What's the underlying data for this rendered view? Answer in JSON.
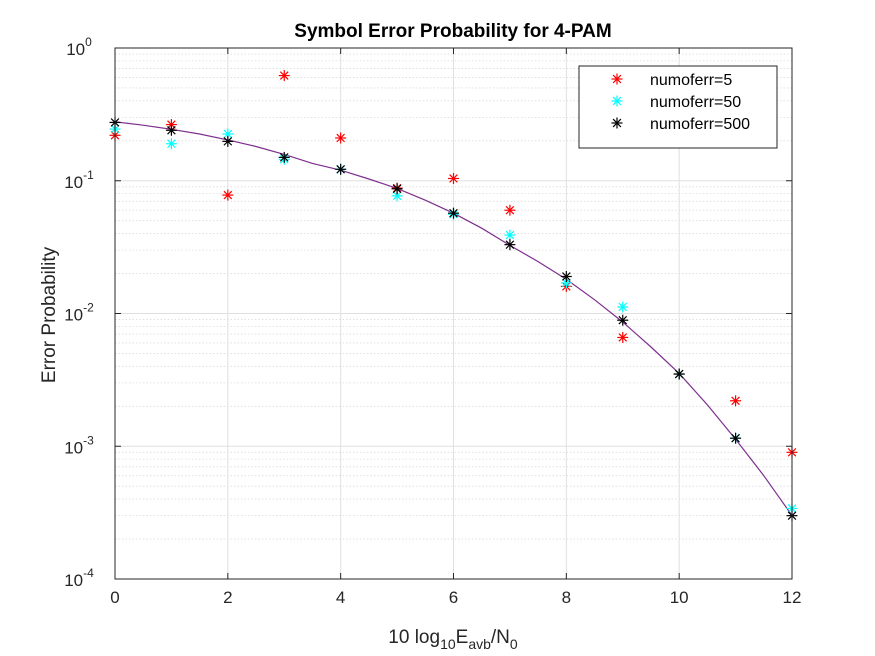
{
  "chart_data": {
    "type": "scatter",
    "title": "Symbol Error Probability for 4-PAM",
    "xlabel": {
      "prefix": "10 log",
      "sub1": "10",
      "mid": "E",
      "sub2": "avb",
      "slash": "/N",
      "sub3": "0"
    },
    "ylabel": "Error Probability",
    "xlim": [
      0,
      12
    ],
    "ylim": [
      0.0001,
      1
    ],
    "yscale": "log",
    "xticks": [
      0,
      2,
      4,
      6,
      8,
      10,
      12
    ],
    "xtick_labels": [
      "0",
      "2",
      "4",
      "6",
      "8",
      "10",
      "12"
    ],
    "yticks": [
      0.0001,
      0.001,
      0.01,
      0.1,
      1
    ],
    "ytick_labels": [
      {
        "base": "10",
        "exp": "-4"
      },
      {
        "base": "10",
        "exp": "-3"
      },
      {
        "base": "10",
        "exp": "-2"
      },
      {
        "base": "10",
        "exp": "-1"
      },
      {
        "base": "10",
        "exp": "0"
      }
    ],
    "grid": true,
    "minor_grid": true,
    "legend_position": "top-right",
    "theory_curve": {
      "color": "#7e2f8e",
      "x": [
        0,
        0.5,
        1,
        1.5,
        2,
        2.5,
        3,
        3.5,
        4,
        4.5,
        5,
        5.5,
        6,
        6.5,
        7,
        7.5,
        8,
        8.5,
        9,
        9.5,
        10,
        10.5,
        11,
        11.5,
        12
      ],
      "y": [
        0.278,
        0.262,
        0.244,
        0.225,
        0.203,
        0.181,
        0.158,
        0.135,
        0.12,
        0.103,
        0.0875,
        0.0714,
        0.057,
        0.0439,
        0.0326,
        0.0246,
        0.0181,
        0.0127,
        0.00861,
        0.00559,
        0.00354,
        0.00205,
        0.00113,
        0.0006,
        0.000301
      ]
    },
    "series": [
      {
        "name": "numoferr=5",
        "color": "#ff0000",
        "x": [
          0,
          1,
          2,
          3,
          4,
          5,
          6,
          7,
          8,
          9,
          10,
          11,
          12
        ],
        "y": [
          0.22,
          0.265,
          0.078,
          0.62,
          0.21,
          0.088,
          0.104,
          0.06,
          0.016,
          0.0066,
          0.0035,
          0.0022,
          0.0009
        ]
      },
      {
        "name": "numoferr=50",
        "color": "#00ffff",
        "x": [
          0,
          1,
          2,
          3,
          4,
          5,
          6,
          7,
          8,
          9,
          10,
          11,
          12
        ],
        "y": [
          0.245,
          0.19,
          0.225,
          0.145,
          0.122,
          0.077,
          0.056,
          0.039,
          0.017,
          0.0112,
          0.0035,
          0.00115,
          0.00034
        ]
      },
      {
        "name": "numoferr=500",
        "color": "#000000",
        "x": [
          0,
          1,
          2,
          3,
          4,
          5,
          6,
          7,
          8,
          9,
          10,
          11,
          12
        ],
        "y": [
          0.275,
          0.24,
          0.198,
          0.15,
          0.122,
          0.087,
          0.057,
          0.033,
          0.019,
          0.0089,
          0.0035,
          0.00115,
          0.0003
        ]
      }
    ]
  }
}
